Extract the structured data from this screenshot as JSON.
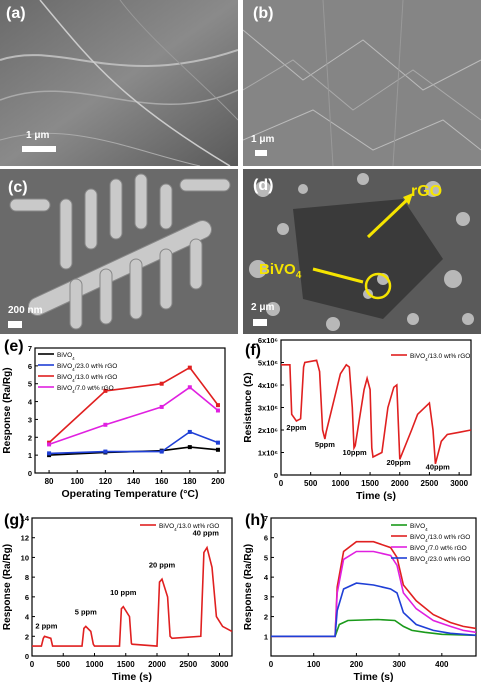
{
  "panels": {
    "a": {
      "label": "(a)",
      "scale": "1 μm"
    },
    "b": {
      "label": "(b)",
      "scale": "1 μm"
    },
    "c": {
      "label": "(c)",
      "scale": "200 nm"
    },
    "d": {
      "label": "(d)",
      "scale": "2 μm",
      "annot_rgo": "rGO",
      "annot_bivo4": "BiVO4"
    },
    "e": {
      "label": "(e)"
    },
    "f": {
      "label": "(f)"
    },
    "g": {
      "label": "(g)"
    },
    "h": {
      "label": "(h)"
    }
  },
  "chart_data": [
    {
      "panel": "e",
      "type": "line",
      "xlabel": "Operating Temperature (°C)",
      "ylabel": "Response (Ra/Rg)",
      "xlim": [
        70,
        205
      ],
      "ylim": [
        0,
        7
      ],
      "xticks": [
        80,
        100,
        120,
        140,
        160,
        180,
        200
      ],
      "yticks": [
        0,
        1,
        2,
        3,
        4,
        5,
        6,
        7
      ],
      "x": [
        80,
        120,
        160,
        180,
        200
      ],
      "legend_position": "top-left",
      "series": [
        {
          "name": "BiVO4",
          "color": "#000000",
          "values": [
            1.0,
            1.15,
            1.25,
            1.45,
            1.3
          ]
        },
        {
          "name": "BiVO4/23.0 wt% rGO",
          "color": "#1f3fd6",
          "values": [
            1.1,
            1.2,
            1.2,
            2.3,
            1.7
          ]
        },
        {
          "name": "BiVO4/13.0 wt% rGO",
          "color": "#e02020",
          "values": [
            1.7,
            4.6,
            5.0,
            5.9,
            3.8
          ]
        },
        {
          "name": "BiVO4/7.0 wt% rGO",
          "color": "#e020e0",
          "values": [
            1.6,
            2.7,
            3.7,
            4.8,
            3.5
          ]
        }
      ]
    },
    {
      "panel": "f",
      "type": "line",
      "xlabel": "Time (s)",
      "ylabel": "Resistance (Ω)",
      "xlim": [
        0,
        3200
      ],
      "ylim": [
        0,
        6000000
      ],
      "xticks": [
        0,
        500,
        1000,
        1500,
        2000,
        2500,
        3000
      ],
      "ytick_labels": [
        "0",
        "1x10⁶",
        "2x10⁶",
        "3x10⁶",
        "4x10⁶",
        "5x10⁶",
        "6x10⁶"
      ],
      "legend_position": "top-right",
      "series": [
        {
          "name": "BiVO4/13.0 wt% rGO",
          "color": "#e02020",
          "x": [
            0,
            150,
            180,
            260,
            330,
            380,
            400,
            600,
            650,
            700,
            740,
            760,
            1000,
            1100,
            1150,
            1200,
            1230,
            1250,
            1400,
            1450,
            1500,
            1530,
            1550,
            1700,
            1800,
            1900,
            1950,
            1980,
            2000,
            2200,
            2300,
            2500,
            2560,
            2600,
            2620,
            2700,
            2800,
            3000,
            3200
          ],
          "values": [
            4900000,
            4900000,
            2700000,
            2400000,
            2500000,
            4800000,
            5000000,
            5100000,
            4600000,
            2000000,
            1600000,
            1900000,
            4500000,
            4900000,
            4800000,
            3000000,
            1200000,
            1300000,
            3800000,
            4300000,
            3800000,
            1200000,
            800000,
            1000000,
            3000000,
            3900000,
            4000000,
            2000000,
            700000,
            2000000,
            2700000,
            3200000,
            2000000,
            500000,
            700000,
            1500000,
            1800000,
            1900000,
            2000000
          ]
        }
      ],
      "annotations": [
        "2ppm",
        "5ppm",
        "10ppm",
        "20ppm",
        "40ppm"
      ]
    },
    {
      "panel": "g",
      "type": "line",
      "xlabel": "Time (s)",
      "ylabel": "Response (Ra/Rg)",
      "xlim": [
        0,
        3200
      ],
      "ylim": [
        0,
        14
      ],
      "xticks": [
        0,
        500,
        1000,
        1500,
        2000,
        2500,
        3000
      ],
      "yticks": [
        0,
        2,
        4,
        6,
        8,
        10,
        12,
        14
      ],
      "legend_position": "top-center",
      "series": [
        {
          "name": "BiVO4/13.0 wt% rGO",
          "color": "#e02020",
          "x": [
            0,
            150,
            180,
            200,
            300,
            330,
            400,
            800,
            830,
            860,
            940,
            980,
            1000,
            1400,
            1430,
            1460,
            1560,
            1590,
            1600,
            2000,
            2040,
            2080,
            2170,
            2210,
            2240,
            2700,
            2750,
            2800,
            2880,
            2950,
            3050,
            3200
          ],
          "values": [
            1.0,
            1.0,
            1.8,
            2.0,
            1.8,
            1.0,
            1.0,
            1.0,
            2.8,
            3.0,
            2.5,
            1.2,
            1.0,
            1.0,
            4.8,
            5.0,
            4.0,
            1.3,
            1.2,
            1.0,
            7.5,
            7.8,
            6.0,
            2.0,
            1.8,
            2.0,
            10.5,
            11.0,
            9.0,
            4.0,
            3.0,
            2.5
          ]
        }
      ],
      "annotations": [
        "2 ppm",
        "5 ppm",
        "10 ppm",
        "20 ppm",
        "40 ppm"
      ]
    },
    {
      "panel": "h",
      "type": "line",
      "xlabel": "Time (s)",
      "ylabel": "Response (Ra/Rg)",
      "xlim": [
        0,
        480
      ],
      "ylim": [
        0,
        7
      ],
      "xticks": [
        0,
        100,
        200,
        300,
        400
      ],
      "yticks": [
        1,
        2,
        3,
        4,
        5,
        6,
        7
      ],
      "legend_position": "top-right",
      "series": [
        {
          "name": "BiVO4",
          "color": "#1a9a1a",
          "x": [
            0,
            150,
            160,
            180,
            250,
            290,
            310,
            330,
            360,
            400,
            480
          ],
          "values": [
            1,
            1,
            1.6,
            1.8,
            1.85,
            1.8,
            1.5,
            1.3,
            1.2,
            1.1,
            1.05
          ]
        },
        {
          "name": "BiVO4/13.0 wt% rGO",
          "color": "#e02020",
          "x": [
            0,
            150,
            155,
            170,
            200,
            240,
            280,
            295,
            310,
            340,
            380,
            420,
            450,
            480
          ],
          "values": [
            1,
            1,
            3.5,
            5.3,
            5.8,
            5.8,
            5.5,
            5.0,
            3.6,
            2.8,
            2.1,
            1.7,
            1.5,
            1.4
          ]
        },
        {
          "name": "BiVO4/7.0 wt% rGO",
          "color": "#e020e0",
          "x": [
            0,
            150,
            155,
            170,
            200,
            240,
            280,
            295,
            310,
            340,
            380,
            420,
            450,
            480
          ],
          "values": [
            1,
            1,
            3.2,
            4.9,
            5.3,
            5.3,
            5.1,
            4.6,
            3.2,
            2.4,
            1.8,
            1.5,
            1.3,
            1.2
          ]
        },
        {
          "name": "BiVO4/23.0 wt% rGO",
          "color": "#1f3fd6",
          "x": [
            0,
            150,
            155,
            170,
            200,
            240,
            280,
            295,
            310,
            340,
            380,
            420,
            450,
            480
          ],
          "values": [
            1,
            1,
            2.3,
            3.4,
            3.7,
            3.6,
            3.4,
            3.2,
            2.2,
            1.6,
            1.3,
            1.15,
            1.1,
            1.05
          ]
        }
      ]
    }
  ]
}
